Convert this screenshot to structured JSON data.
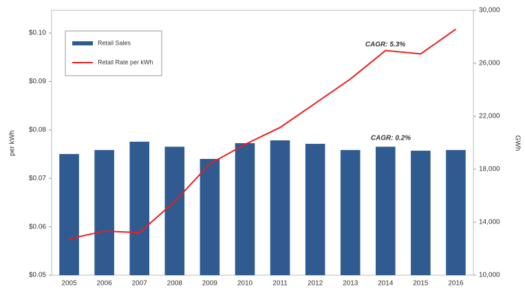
{
  "chart_data": {
    "type": "bar_line",
    "categories": [
      "2005",
      "2006",
      "2007",
      "2008",
      "2009",
      "2010",
      "2011",
      "2012",
      "2013",
      "2014",
      "2015",
      "2016"
    ],
    "series": [
      {
        "name": "Retail Sales",
        "type": "bar",
        "axis": "y2",
        "color": "#2f5b91",
        "values": [
          19150,
          19450,
          20080,
          19700,
          18780,
          19970,
          20180,
          19920,
          19450,
          19700,
          19400,
          19450
        ]
      },
      {
        "name": "Retail Rate per kWh",
        "type": "line",
        "axis": "y",
        "color": "#ee1c1c",
        "values": [
          0.0575,
          0.0591,
          0.0588,
          0.0652,
          0.073,
          0.077,
          0.0805,
          0.0855,
          0.0905,
          0.0964,
          0.0957,
          0.1008
        ]
      }
    ],
    "y_label": "per kWh",
    "y2_label": "GWh",
    "ylim": [
      0.05,
      0.1047
    ],
    "yticks": [
      {
        "value": 0.05,
        "label": "$0.05"
      },
      {
        "value": 0.06,
        "label": "$0.06"
      },
      {
        "value": 0.07,
        "label": "$0.07"
      },
      {
        "value": 0.08,
        "label": "$0.08"
      },
      {
        "value": 0.09,
        "label": "$0.09"
      },
      {
        "value": 0.1,
        "label": "$0.10"
      }
    ],
    "y2lim": [
      10000,
      30000
    ],
    "y2ticks": [
      {
        "value": 10000,
        "label": "10,000"
      },
      {
        "value": 14000,
        "label": "14,000"
      },
      {
        "value": 18000,
        "label": "18,000"
      },
      {
        "value": 22000,
        "label": "22,000"
      },
      {
        "value": 26000,
        "label": "26,000"
      },
      {
        "value": 30000,
        "label": "30,000"
      }
    ],
    "annotations": [
      "CAGR: 5.3%",
      "CAGR: 0.2%"
    ]
  }
}
